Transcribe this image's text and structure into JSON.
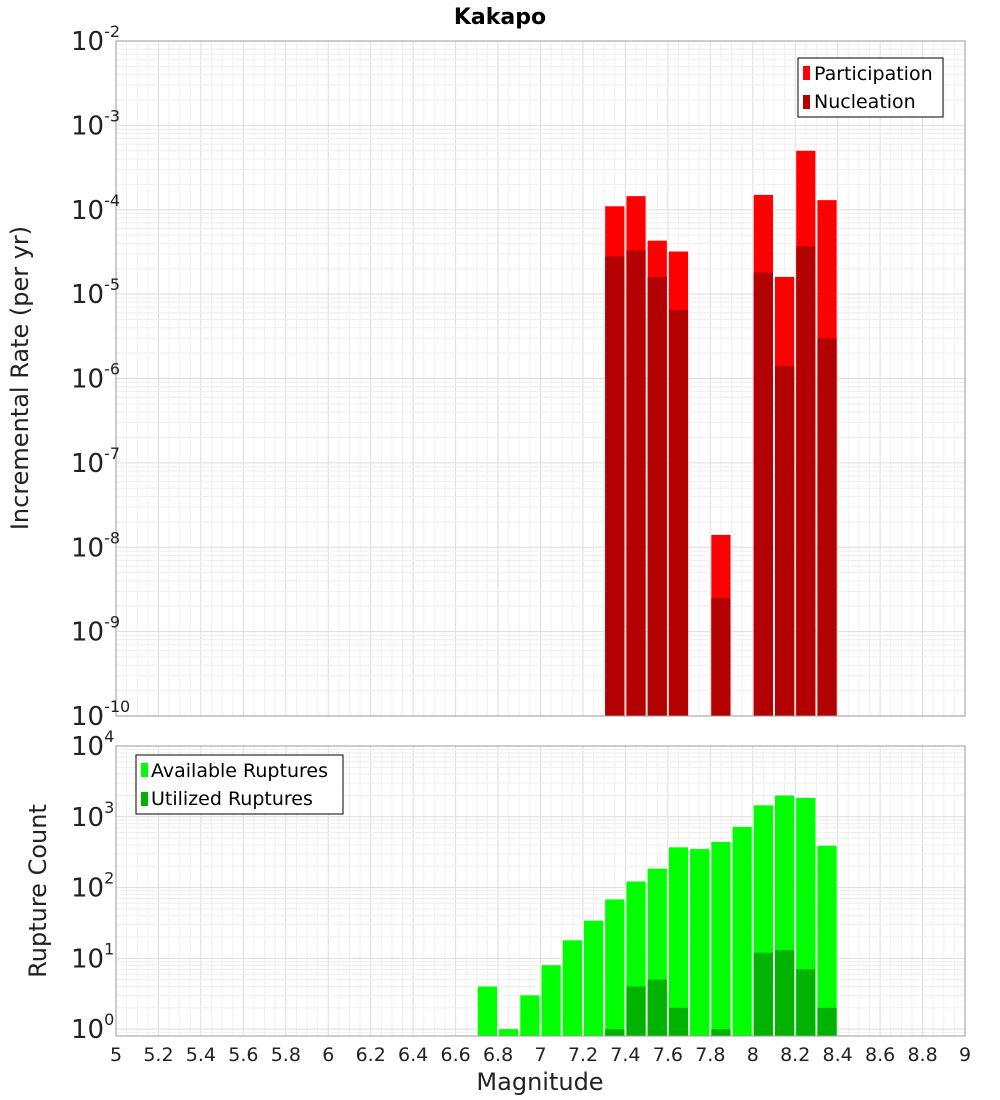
{
  "chart_data": [
    {
      "type": "bar",
      "title": "Kakapo",
      "xlabel": "",
      "ylabel": "Incremental Rate (per yr)",
      "y_scale": "log",
      "ylim": [
        1e-10,
        0.01
      ],
      "xlim": [
        5,
        9
      ],
      "y_tick_exponents": [
        "-10",
        "-9",
        "-8",
        "-7",
        "-6",
        "-5",
        "-4",
        "-3",
        "-2"
      ],
      "grid": true,
      "legend_position": "top-right",
      "x": [
        7.35,
        7.45,
        7.55,
        7.65,
        7.85,
        8.05,
        8.15,
        8.25,
        8.35
      ],
      "series": [
        {
          "name": "Participation",
          "color": "#ff0000",
          "values": [
            0.00011,
            0.000145,
            4.3e-05,
            3.2e-05,
            1.4e-08,
            0.00015,
            1.6e-05,
            0.0005,
            0.00013
          ]
        },
        {
          "name": "Nucleation",
          "color": "#b30000",
          "values": [
            2.8e-05,
            3.3e-05,
            1.6e-05,
            6.5e-06,
            2.5e-09,
            1.8e-05,
            1.4e-06,
            3.7e-05,
            3e-06
          ]
        }
      ]
    },
    {
      "type": "bar",
      "title": "",
      "xlabel": "Magnitude",
      "ylabel": "Rupture Count",
      "y_scale": "log",
      "ylim": [
        0.8,
        10000
      ],
      "xlim": [
        5,
        9
      ],
      "y_tick_exponents": [
        "0",
        "1",
        "2",
        "3",
        "4"
      ],
      "x_tick_labels": [
        "5",
        "5.2",
        "5.4",
        "5.6",
        "5.8",
        "6",
        "6.2",
        "6.4",
        "6.6",
        "6.8",
        "7",
        "7.2",
        "7.4",
        "7.6",
        "7.8",
        "8",
        "8.2",
        "8.4",
        "8.6",
        "8.8",
        "9"
      ],
      "grid": true,
      "legend_position": "top-left",
      "x": [
        6.75,
        6.85,
        6.95,
        7.05,
        7.15,
        7.25,
        7.35,
        7.45,
        7.55,
        7.65,
        7.75,
        7.85,
        7.95,
        8.05,
        8.15,
        8.25,
        8.35
      ],
      "series": [
        {
          "name": "Available Ruptures",
          "color": "#00ff00",
          "values": [
            4,
            1,
            3,
            8,
            18,
            34,
            68,
            122,
            185,
            370,
            350,
            440,
            720,
            1450,
            2000,
            1850,
            390
          ]
        },
        {
          "name": "Utilized Ruptures",
          "color": "#00b300",
          "values": [
            0,
            0,
            0,
            0,
            0,
            0,
            1,
            4,
            5,
            2,
            0,
            1,
            0,
            12,
            13,
            7,
            2
          ]
        }
      ]
    }
  ]
}
